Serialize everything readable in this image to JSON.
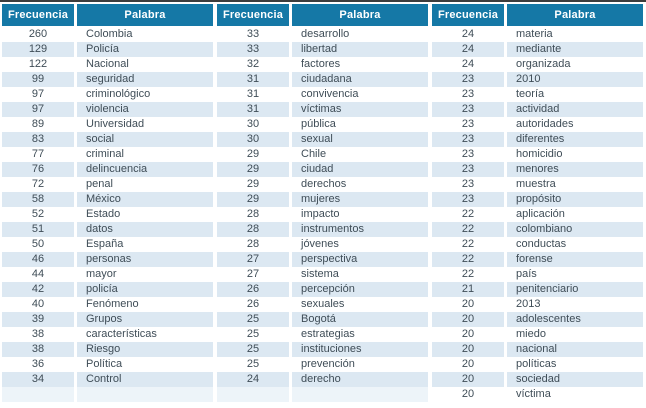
{
  "table": {
    "row_count": 25,
    "columns": [
      "Frecuencia",
      "Palabra"
    ],
    "colors": {
      "header_bg": "#1578a6",
      "stripe_bg": "#dce8f2",
      "empty_cell_bg": "#edf4f9",
      "text_color": "#3f4d57",
      "top_border": "#3d3d3d"
    },
    "groups": [
      {
        "rows": [
          [
            260,
            "Colombia"
          ],
          [
            129,
            "Policía"
          ],
          [
            122,
            "Nacional"
          ],
          [
            99,
            "seguridad"
          ],
          [
            97,
            "criminológico"
          ],
          [
            97,
            "violencia"
          ],
          [
            89,
            "Universidad"
          ],
          [
            83,
            "social"
          ],
          [
            77,
            "criminal"
          ],
          [
            76,
            "delincuencia"
          ],
          [
            72,
            "penal"
          ],
          [
            58,
            "México"
          ],
          [
            52,
            "Estado"
          ],
          [
            51,
            "datos"
          ],
          [
            50,
            "España"
          ],
          [
            46,
            "personas"
          ],
          [
            44,
            "mayor"
          ],
          [
            42,
            "policía"
          ],
          [
            40,
            "Fenómeno"
          ],
          [
            39,
            "Grupos"
          ],
          [
            38,
            "características"
          ],
          [
            38,
            "Riesgo"
          ],
          [
            36,
            "Política"
          ],
          [
            34,
            "Control"
          ]
        ]
      },
      {
        "rows": [
          [
            33,
            "desarrollo"
          ],
          [
            33,
            "libertad"
          ],
          [
            32,
            "factores"
          ],
          [
            31,
            "ciudadana"
          ],
          [
            31,
            "convivencia"
          ],
          [
            31,
            "víctimas"
          ],
          [
            30,
            "pública"
          ],
          [
            30,
            "sexual"
          ],
          [
            29,
            "Chile"
          ],
          [
            29,
            "ciudad"
          ],
          [
            29,
            "derechos"
          ],
          [
            29,
            "mujeres"
          ],
          [
            28,
            "impacto"
          ],
          [
            28,
            "instrumentos"
          ],
          [
            28,
            "jóvenes"
          ],
          [
            27,
            "perspectiva"
          ],
          [
            27,
            "sistema"
          ],
          [
            26,
            "percepción"
          ],
          [
            26,
            "sexuales"
          ],
          [
            25,
            "Bogotá"
          ],
          [
            25,
            "estrategias"
          ],
          [
            25,
            "instituciones"
          ],
          [
            25,
            "prevención"
          ],
          [
            24,
            "derecho"
          ]
        ]
      },
      {
        "rows": [
          [
            24,
            "materia"
          ],
          [
            24,
            "mediante"
          ],
          [
            24,
            "organizada"
          ],
          [
            23,
            "2010"
          ],
          [
            23,
            "teoría"
          ],
          [
            23,
            "actividad"
          ],
          [
            23,
            "autoridades"
          ],
          [
            23,
            "diferentes"
          ],
          [
            23,
            "homicidio"
          ],
          [
            23,
            "menores"
          ],
          [
            23,
            "muestra"
          ],
          [
            23,
            "propósito"
          ],
          [
            22,
            "aplicación"
          ],
          [
            22,
            "colombiano"
          ],
          [
            22,
            "conductas"
          ],
          [
            22,
            "forense"
          ],
          [
            22,
            "país"
          ],
          [
            21,
            "penitenciario"
          ],
          [
            20,
            "2013"
          ],
          [
            20,
            "adolescentes"
          ],
          [
            20,
            "miedo"
          ],
          [
            20,
            "nacional"
          ],
          [
            20,
            "políticas"
          ],
          [
            20,
            "sociedad"
          ],
          [
            20,
            "víctima"
          ]
        ]
      }
    ]
  }
}
